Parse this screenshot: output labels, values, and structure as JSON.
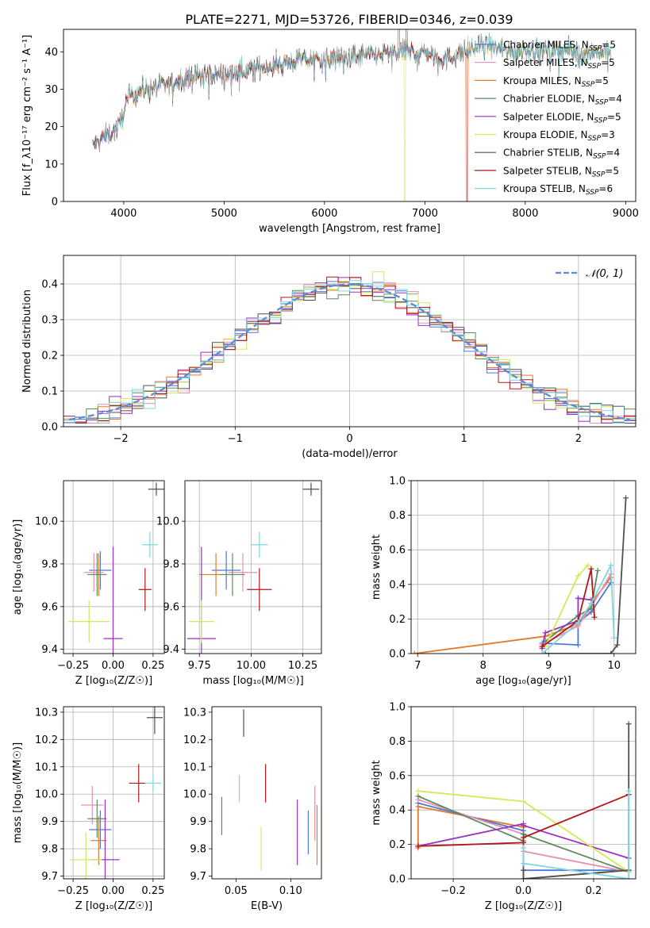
{
  "title": "PLATE=2271, MJD=53726, FIBERID=0346, z=0.039",
  "colors": {
    "Chabrier MILES": "#4c78d8",
    "Salpeter MILES": "#e58fb2",
    "Kroupa MILES": "#e07b2a",
    "Chabrier ELODIE": "#5d8a5d",
    "Salpeter ELODIE": "#9b30c4",
    "Kroupa ELODIE": "#d4e85a",
    "Chabrier STELIB": "#505050",
    "Salpeter STELIB": "#b01818",
    "Kroupa STELIB": "#7fd6df",
    "gauss": "#5b8bd6"
  },
  "chart_data": [
    {
      "type": "line",
      "id": "spectrum",
      "xlabel": "wavelength [Angstrom, rest frame]",
      "ylabel": "Flux [f_λ10⁻¹⁷ erg cm⁻² s⁻¹ A⁻¹]",
      "xlim": [
        3400,
        9100
      ],
      "ylim": [
        0,
        46
      ],
      "xticks": [
        4000,
        5000,
        6000,
        7000,
        8000,
        9000
      ],
      "yticks": [
        0,
        10,
        20,
        30,
        40
      ],
      "anchors": {
        "x": [
          3690,
          3800,
          3950,
          4050,
          4200,
          4400,
          4600,
          4800,
          5000,
          5200,
          5400,
          5600,
          5800,
          6000,
          6200,
          6400,
          6600,
          6800,
          7000,
          7200,
          7400,
          7600,
          7800,
          8000,
          8200,
          8400,
          8600,
          8850
        ],
        "y": [
          15,
          17,
          20,
          28,
          30,
          31,
          33,
          34,
          34,
          35,
          36,
          37,
          38,
          38,
          38.5,
          39,
          39.5,
          40,
          40,
          38,
          40,
          42,
          40,
          40.5,
          40.5,
          40.5,
          40,
          40
        ]
      },
      "legend": [
        {
          "series": "Chabrier MILES",
          "label": "Chabrier MILES, N",
          "sub": "SSP",
          "n": "=5"
        },
        {
          "series": "Salpeter MILES",
          "label": "Salpeter MILES, N",
          "sub": "SSP",
          "n": "=5"
        },
        {
          "series": "Kroupa MILES",
          "label": "Kroupa MILES, N",
          "sub": "SSP",
          "n": "=5"
        },
        {
          "series": "Chabrier ELODIE",
          "label": "Chabrier ELODIE, N",
          "sub": "SSP",
          "n": "=4"
        },
        {
          "series": "Salpeter ELODIE",
          "label": "Salpeter ELODIE, N",
          "sub": "SSP",
          "n": "=5"
        },
        {
          "series": "Kroupa ELODIE",
          "label": "Kroupa ELODIE, N",
          "sub": "SSP",
          "n": "=3"
        },
        {
          "series": "Chabrier STELIB",
          "label": "Chabrier STELIB, N",
          "sub": "SSP",
          "n": "=4"
        },
        {
          "series": "Salpeter STELIB",
          "label": "Salpeter STELIB, N",
          "sub": "SSP",
          "n": "=5"
        },
        {
          "series": "Kroupa STELIB",
          "label": "Kroupa STELIB, N",
          "sub": "SSP",
          "n": "=6"
        }
      ],
      "legend_loc": "right",
      "grid": false
    },
    {
      "type": "line",
      "id": "residuals",
      "xlabel": "(data-model)/error",
      "ylabel": "Normed distribution",
      "xlim": [
        -2.5,
        2.5
      ],
      "ylim": [
        0,
        0.48
      ],
      "xticks": [
        -2,
        -1,
        0,
        1,
        2
      ],
      "yticks": [
        0.0,
        0.1,
        0.2,
        0.3,
        0.4
      ],
      "bin_width": 0.1,
      "legend": "𝒩(0, 1)",
      "legend_loc": "upper right",
      "grid": true
    },
    {
      "type": "scatter",
      "id": "age_vs_Z",
      "xlabel": "Z [log₁₀(Z/Z☉)]",
      "ylabel": "age  [log₁₀(age/yr)]",
      "xlim": [
        -0.31,
        0.32
      ],
      "ylim": [
        9.38,
        10.19
      ],
      "xticks": [
        -0.25,
        0.0,
        0.25
      ],
      "yticks": [
        9.4,
        9.6,
        9.8,
        10.0
      ],
      "grid": true,
      "points": [
        {
          "series": "Chabrier MILES",
          "x": -0.08,
          "y": 9.77,
          "xerr": 0.07,
          "yerr": 0.09
        },
        {
          "series": "Salpeter MILES",
          "x": -0.12,
          "y": 9.76,
          "xerr": 0.06,
          "yerr": 0.09
        },
        {
          "series": "Kroupa MILES",
          "x": -0.09,
          "y": 9.75,
          "xerr": 0.05,
          "yerr": 0.1
        },
        {
          "series": "Chabrier ELODIE",
          "x": -0.1,
          "y": 9.75,
          "xerr": 0.06,
          "yerr": 0.1
        },
        {
          "series": "Salpeter ELODIE",
          "x": 0.0,
          "y": 9.45,
          "xerr": 0.06,
          "yerr": 0.43
        },
        {
          "series": "Kroupa ELODIE",
          "x": -0.15,
          "y": 9.53,
          "xerr": 0.13,
          "yerr": 0.1
        },
        {
          "series": "Chabrier STELIB",
          "x": 0.27,
          "y": 10.15,
          "xerr": 0.05,
          "yerr": 0.03
        },
        {
          "series": "Salpeter STELIB",
          "x": 0.2,
          "y": 9.68,
          "xerr": 0.04,
          "yerr": 0.1
        },
        {
          "series": "Kroupa STELIB",
          "x": 0.23,
          "y": 9.89,
          "xerr": 0.05,
          "yerr": 0.06
        }
      ]
    },
    {
      "type": "scatter",
      "id": "age_vs_mass",
      "xlabel": "mass [log₁₀(M/M☉)]",
      "ylabel": "",
      "xlim": [
        9.68,
        10.34
      ],
      "ylim": [
        9.38,
        10.19
      ],
      "xticks": [
        9.75,
        10.0,
        10.25
      ],
      "yticks": [
        9.4,
        9.6,
        9.8,
        10.0
      ],
      "grid": true,
      "points": [
        {
          "series": "Chabrier MILES",
          "x": 9.88,
          "y": 9.77,
          "xerr": 0.07,
          "yerr": 0.09
        },
        {
          "series": "Salpeter MILES",
          "x": 9.96,
          "y": 9.76,
          "xerr": 0.07,
          "yerr": 0.09
        },
        {
          "series": "Kroupa MILES",
          "x": 9.83,
          "y": 9.75,
          "xerr": 0.08,
          "yerr": 0.1
        },
        {
          "series": "Chabrier ELODIE",
          "x": 9.91,
          "y": 9.75,
          "xerr": 0.06,
          "yerr": 0.1
        },
        {
          "series": "Salpeter ELODIE",
          "x": 9.76,
          "y": 9.45,
          "xerr": 0.07,
          "yerr": 0.43
        },
        {
          "series": "Kroupa ELODIE",
          "x": 9.76,
          "y": 9.53,
          "xerr": 0.06,
          "yerr": 0.1
        },
        {
          "series": "Chabrier STELIB",
          "x": 10.29,
          "y": 10.15,
          "xerr": 0.04,
          "yerr": 0.03
        },
        {
          "series": "Salpeter STELIB",
          "x": 10.04,
          "y": 9.68,
          "xerr": 0.06,
          "yerr": 0.1
        },
        {
          "series": "Kroupa STELIB",
          "x": 10.04,
          "y": 9.89,
          "xerr": 0.04,
          "yerr": 0.06
        }
      ]
    },
    {
      "type": "line",
      "id": "mass_weight_vs_age",
      "xlabel": "age  [log₁₀(age/yr)]",
      "ylabel": "mass weight",
      "xlim": [
        6.9,
        10.33
      ],
      "ylim": [
        0,
        1
      ],
      "xticks": [
        7,
        8,
        9,
        10
      ],
      "yticks": [
        0.0,
        0.2,
        0.4,
        0.6,
        0.8,
        1.0
      ],
      "grid": true,
      "series": [
        {
          "name": "Kroupa MILES",
          "x": [
            6.95,
            8.95,
            9.45,
            9.65,
            9.95
          ],
          "y": [
            0.0,
            0.1,
            0.17,
            0.29,
            0.44
          ]
        },
        {
          "name": "Chabrier MILES",
          "x": [
            8.9,
            9.45,
            9.45,
            9.65,
            9.95
          ],
          "y": [
            0.06,
            0.05,
            0.18,
            0.24,
            0.41
          ]
        },
        {
          "name": "Salpeter MILES",
          "x": [
            8.9,
            9.45,
            9.65,
            9.95
          ],
          "y": [
            0.05,
            0.16,
            0.27,
            0.46
          ]
        },
        {
          "name": "Chabrier ELODIE",
          "x": [
            8.95,
            9.45,
            9.65,
            9.75
          ],
          "y": [
            0.07,
            0.22,
            0.26,
            0.48
          ]
        },
        {
          "name": "Salpeter ELODIE",
          "x": [
            8.9,
            8.95,
            9.45,
            9.45,
            9.65
          ],
          "y": [
            0.03,
            0.12,
            0.19,
            0.32,
            0.31
          ]
        },
        {
          "name": "Kroupa ELODIE",
          "x": [
            8.95,
            9.45,
            9.6
          ],
          "y": [
            0.04,
            0.45,
            0.51
          ]
        },
        {
          "name": "Chabrier STELIB",
          "x": [
            8.95,
            9.95,
            10.05,
            10.18
          ],
          "y": [
            0.0,
            0.0,
            0.05,
            0.9
          ]
        },
        {
          "name": "Salpeter STELIB",
          "x": [
            8.9,
            9.45,
            9.65,
            9.7
          ],
          "y": [
            0.04,
            0.19,
            0.49,
            0.21
          ]
        },
        {
          "name": "Kroupa STELIB",
          "x": [
            8.9,
            9.45,
            9.65,
            9.95,
            10.0
          ],
          "y": [
            0.0,
            0.18,
            0.29,
            0.51,
            0.09
          ]
        }
      ]
    },
    {
      "type": "scatter",
      "id": "mass_vs_Z",
      "xlabel": "Z [log₁₀(Z/Z☉)]",
      "ylabel": "mass [log₁₀(M/M☉)]",
      "xlim": [
        -0.31,
        0.32
      ],
      "ylim": [
        9.69,
        10.32
      ],
      "xticks": [
        -0.25,
        0.0,
        0.25
      ],
      "yticks": [
        9.7,
        9.8,
        9.9,
        10.0,
        10.1,
        10.2,
        10.3
      ],
      "grid": true,
      "points": [
        {
          "series": "Chabrier MILES",
          "x": -0.08,
          "y": 9.87,
          "xerr": 0.07,
          "yerr": 0.07
        },
        {
          "series": "Salpeter MILES",
          "x": -0.13,
          "y": 9.96,
          "xerr": 0.07,
          "yerr": 0.07
        },
        {
          "series": "Kroupa MILES",
          "x": -0.09,
          "y": 9.83,
          "xerr": 0.05,
          "yerr": 0.09
        },
        {
          "series": "Chabrier ELODIE",
          "x": -0.1,
          "y": 9.91,
          "xerr": 0.06,
          "yerr": 0.07
        },
        {
          "series": "Salpeter ELODIE",
          "x": -0.05,
          "y": 9.76,
          "xerr": 0.09,
          "yerr": 0.22
        },
        {
          "series": "Kroupa ELODIE",
          "x": -0.17,
          "y": 9.76,
          "xerr": 0.1,
          "yerr": 0.1
        },
        {
          "series": "Chabrier STELIB",
          "x": 0.26,
          "y": 10.28,
          "xerr": 0.05,
          "yerr": 0.06
        },
        {
          "series": "Salpeter STELIB",
          "x": 0.16,
          "y": 10.04,
          "xerr": 0.06,
          "yerr": 0.07
        },
        {
          "series": "Kroupa STELIB",
          "x": 0.25,
          "y": 10.04,
          "xerr": 0.05,
          "yerr": 0.03
        }
      ]
    },
    {
      "type": "scatter",
      "id": "mass_vs_ebv",
      "xlabel": "E(B-V)",
      "ylabel": "",
      "xlim": [
        0.028,
        0.128
      ],
      "ylim": [
        9.69,
        10.32
      ],
      "xticks": [
        0.05,
        0.1
      ],
      "yticks": [
        9.7,
        9.8,
        9.9,
        10.0,
        10.1,
        10.2,
        10.3
      ],
      "grid": false,
      "points": [
        {
          "series": "Chabrier ELODIE",
          "x": 0.037,
          "y": 9.92,
          "yerr": 0.07
        },
        {
          "series": "Kroupa STELIB",
          "x": 0.053,
          "y": 10.02,
          "yerr": 0.05
        },
        {
          "series": "Chabrier STELIB",
          "x": 0.057,
          "y": 10.26,
          "yerr": 0.05
        },
        {
          "series": "Kroupa ELODIE",
          "x": 0.073,
          "y": 9.8,
          "yerr": 0.08
        },
        {
          "series": "Salpeter STELIB",
          "x": 0.077,
          "y": 10.04,
          "yerr": 0.07
        },
        {
          "series": "Salpeter ELODIE",
          "x": 0.106,
          "y": 9.86,
          "yerr": 0.12
        },
        {
          "series": "Chabrier MILES",
          "x": 0.116,
          "y": 9.86,
          "yerr": 0.08
        },
        {
          "series": "Salpeter MILES",
          "x": 0.122,
          "y": 9.93,
          "yerr": 0.1
        },
        {
          "series": "Kroupa MILES",
          "x": 0.124,
          "y": 9.85,
          "yerr": 0.11
        }
      ]
    },
    {
      "type": "line",
      "id": "mass_weight_vs_Z",
      "xlabel": "Z [log₁₀(Z/Z☉)]",
      "ylabel": "mass weight",
      "xlim": [
        -0.32,
        0.32
      ],
      "ylim": [
        0,
        1
      ],
      "xticks": [
        -0.2,
        0.0,
        0.2
      ],
      "yticks": [
        0.0,
        0.2,
        0.4,
        0.6,
        0.8,
        1.0
      ],
      "grid": true,
      "series": [
        {
          "name": "Kroupa MILES",
          "x": [
            -0.3,
            -0.3,
            0.0,
            0.0,
            0.3
          ],
          "y": [
            0.18,
            0.42,
            0.3,
            0.0,
            0.05
          ]
        },
        {
          "name": "Chabrier MILES",
          "x": [
            -0.3,
            0.0,
            0.0,
            0.3
          ],
          "y": [
            0.44,
            0.28,
            0.05,
            0.05
          ]
        },
        {
          "name": "Salpeter MILES",
          "x": [
            -0.3,
            0.0,
            0.0,
            0.3
          ],
          "y": [
            0.46,
            0.26,
            0.16,
            0.04
          ]
        },
        {
          "name": "Chabrier ELODIE",
          "x": [
            -0.3,
            0.0,
            0.0,
            0.3
          ],
          "y": [
            0.48,
            0.22,
            0.26,
            0.04
          ]
        },
        {
          "name": "Salpeter ELODIE",
          "x": [
            -0.3,
            0.0,
            0.0,
            0.3
          ],
          "y": [
            0.19,
            0.32,
            0.31,
            0.12
          ]
        },
        {
          "name": "Kroupa ELODIE",
          "x": [
            -0.3,
            0.0,
            0.3
          ],
          "y": [
            0.51,
            0.45,
            0.04
          ]
        },
        {
          "name": "Chabrier STELIB",
          "x": [
            0.0,
            0.0,
            0.3,
            0.3
          ],
          "y": [
            0.05,
            0.0,
            0.05,
            0.9
          ]
        },
        {
          "name": "Salpeter STELIB",
          "x": [
            -0.3,
            0.0,
            0.0,
            0.3
          ],
          "y": [
            0.19,
            0.21,
            0.24,
            0.49
          ]
        },
        {
          "name": "Kroupa STELIB",
          "x": [
            0.0,
            0.0,
            0.3,
            0.3
          ],
          "y": [
            0.18,
            0.09,
            0.0,
            0.51
          ]
        }
      ]
    }
  ]
}
